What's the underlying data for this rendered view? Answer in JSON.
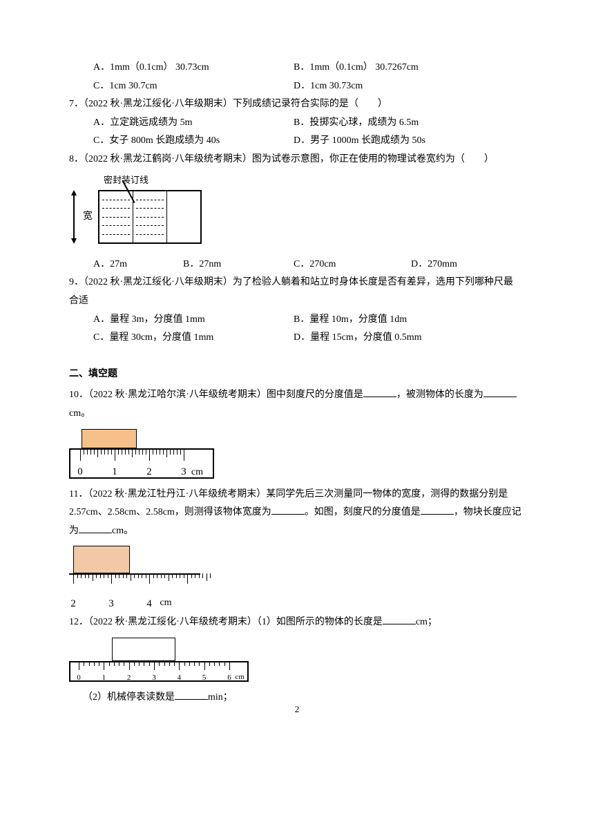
{
  "q6opts": {
    "A": "A．1mm（0.1cm）  30.73cm",
    "B": "B．1mm（0.1cm）  30.7267cm",
    "C": "C．1cm 30.7cm",
    "D": "D．1cm  30.73cm"
  },
  "q7": {
    "stem": "7．（2022 秋·黑龙江绥化·八年级期末）下列成绩记录符合实际的是（　　）",
    "A": "A．立定跳远成绩为 5m",
    "B": "B．投掷实心球，成绩为 6.5m",
    "C": "C．女子 800m 长跑成绩为 40s",
    "D": "D．男子 1000m 长跑成绩为 50s"
  },
  "q8": {
    "stem": "8．（2022 秋·黑龙江鹤岗·八年级统考期末）图为试卷示意图，你正在使用的物理试卷宽约为（　　）",
    "figLabel": "密封装订线",
    "kuan": "宽",
    "A": "A．27m",
    "B": "B．27nm",
    "C": "C．270cm",
    "D": "D．270mm"
  },
  "q9": {
    "stem": "9．（2022 秋·黑龙江绥化·八年级期末）为了检验人躺着和站立时身体长度是否有差异，选用下列哪种尺最",
    "stem2": "合适",
    "A": "A．量程 3m，分度值 1mm",
    "B": "B．量程 10m，分度值 1dm",
    "C": "C．量程 30cm，分度值 1mm",
    "D": "D．量程 15cm，分度值 0.5mm"
  },
  "section2": "二、填空题",
  "q10": {
    "stem_a": "10．（2022 秋·黑龙江哈尔滨·八年级统考期末）图中刻度尺的分度值是",
    "stem_b": "，被测物体的长度为",
    "stem_c": "cm。",
    "ruler": {
      "labels": [
        "0",
        "1",
        "2",
        "3"
      ],
      "unit": "cm",
      "major": 4,
      "minorPerMajor": 10,
      "blockColor": "#f5c08a"
    }
  },
  "q11": {
    "stem": "11．（2022 秋·黑龙江牡丹江·八年级统考期末）某同学先后三次测量同一物体的宽度，测得的数据分别是",
    "line2a": "2.57cm、2.58cm、2.58cm，则测得该物体宽度为",
    "line2b": "。如图，刻度尺的分度值是",
    "line2c": "，物块长度应记",
    "line3a": "为",
    "line3b": "cm。",
    "ruler": {
      "labels": [
        "2",
        "3",
        "4"
      ],
      "unit": "cm",
      "minorPerMajor": 10,
      "blockColor": "#f2c9a7"
    }
  },
  "q12": {
    "stem_a": "12．（2022 秋·黑龙江绥化·八年级统考期末）（1）如图所示的物体的长度是",
    "stem_b": "cm；",
    "line2a": "（2）机械停表读数是",
    "line2b": "min；",
    "ruler": {
      "labels": [
        "0",
        "1",
        "2",
        "3",
        "4",
        "5",
        "6"
      ],
      "unit": "cm",
      "major": 7,
      "minorPerMajor": 5
    }
  },
  "pageNumber": "2"
}
